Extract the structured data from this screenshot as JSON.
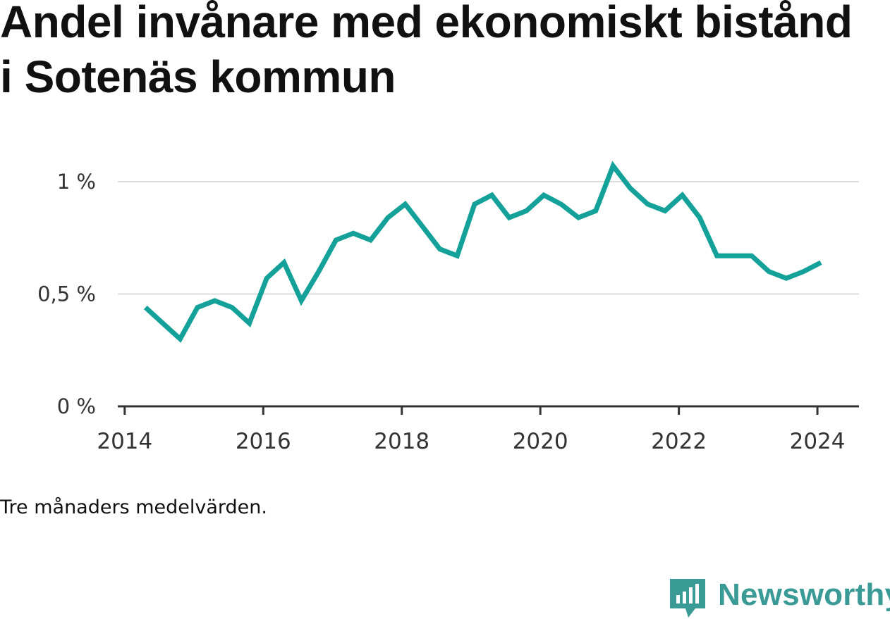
{
  "title": "Andel invånare med ekonomiskt bistånd i Sotenäs kommun",
  "note": "Tre månaders medelvärden.",
  "brand": {
    "name": "Newsworthy",
    "color": "#3a9a95",
    "icon": "newsworthy-bar-chart-icon"
  },
  "colors": {
    "line": "#14a199",
    "grid": "#dddddd",
    "axis": "#333333"
  },
  "chart_data": {
    "type": "line",
    "title": "Andel invånare med ekonomiskt bistånd i Sotenäs kommun",
    "xlabel": "",
    "ylabel": "",
    "xlim": [
      2013.9,
      2024.6
    ],
    "ylim": [
      0,
      1.05
    ],
    "grid": true,
    "legend": "none",
    "x_ticks": [
      {
        "value": 2014,
        "label": "2014"
      },
      {
        "value": 2016,
        "label": "2016"
      },
      {
        "value": 2018,
        "label": "2018"
      },
      {
        "value": 2020,
        "label": "2020"
      },
      {
        "value": 2022,
        "label": "2022"
      },
      {
        "value": 2024,
        "label": "2024"
      }
    ],
    "y_ticks": [
      {
        "value": 0,
        "label": "0 %"
      },
      {
        "value": 0.5,
        "label": "0,5 %"
      },
      {
        "value": 1,
        "label": "1 %"
      }
    ],
    "series": [
      {
        "x": [
          2014.3,
          2014.55,
          2014.8,
          2015.05,
          2015.3,
          2015.55,
          2015.8,
          2016.05,
          2016.3,
          2016.55,
          2016.8,
          2017.05,
          2017.3,
          2017.55,
          2017.8,
          2018.05,
          2018.3,
          2018.55,
          2018.8,
          2019.05,
          2019.3,
          2019.55,
          2019.8,
          2020.05,
          2020.3,
          2020.55,
          2020.8,
          2021.05,
          2021.3,
          2021.55,
          2021.8,
          2022.05,
          2022.3,
          2022.55,
          2022.8,
          2023.05,
          2023.3,
          2023.55,
          2023.8,
          2024.05
        ],
        "values": [
          0.44,
          0.37,
          0.3,
          0.44,
          0.47,
          0.44,
          0.37,
          0.57,
          0.64,
          0.47,
          0.6,
          0.74,
          0.77,
          0.74,
          0.84,
          0.9,
          0.8,
          0.7,
          0.67,
          0.9,
          0.94,
          0.84,
          0.87,
          0.94,
          0.9,
          0.84,
          0.87,
          1.07,
          0.97,
          0.9,
          0.87,
          0.94,
          0.84,
          0.67,
          0.67,
          0.67,
          0.6,
          0.57,
          0.6,
          0.64
        ]
      }
    ]
  }
}
